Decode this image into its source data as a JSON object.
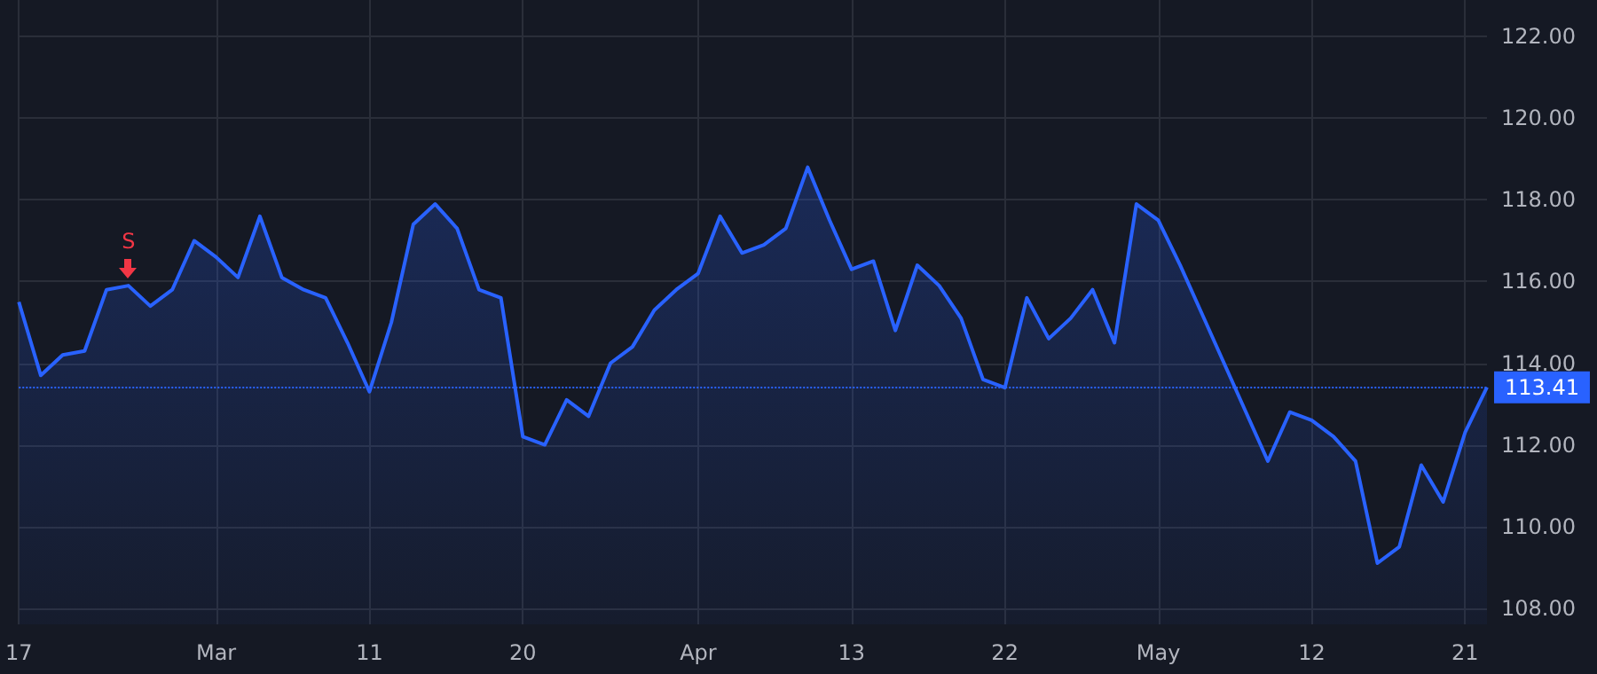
{
  "chart_data": {
    "type": "area",
    "categories": [
      "17",
      null,
      null,
      null,
      null,
      null,
      null,
      null,
      null,
      "Mar",
      null,
      null,
      null,
      null,
      null,
      null,
      "11",
      null,
      null,
      null,
      null,
      null,
      null,
      "20",
      null,
      null,
      null,
      null,
      null,
      null,
      null,
      "Apr",
      null,
      null,
      null,
      null,
      null,
      null,
      "13",
      null,
      null,
      null,
      null,
      null,
      null,
      "22",
      null,
      null,
      null,
      null,
      null,
      null,
      "May",
      null,
      null,
      null,
      null,
      null,
      null,
      "12",
      null,
      null,
      null,
      null,
      null,
      null,
      "21",
      null
    ],
    "series": [
      {
        "color": "#2962ff",
        "values": [
          115.5,
          113.7,
          114.2,
          114.3,
          115.8,
          115.9,
          115.4,
          115.8,
          117.0,
          116.6,
          116.1,
          117.6,
          116.1,
          115.8,
          115.6,
          114.5,
          113.3,
          115.0,
          117.4,
          117.9,
          117.3,
          115.8,
          115.6,
          112.2,
          112.0,
          113.1,
          112.7,
          114.0,
          114.4,
          115.3,
          115.8,
          116.2,
          117.6,
          116.7,
          116.9,
          117.3,
          118.8,
          117.5,
          116.3,
          116.5,
          114.8,
          116.4,
          115.9,
          115.1,
          113.6,
          113.4,
          115.6,
          114.6,
          115.1,
          115.8,
          114.5,
          117.9,
          117.5,
          116.4,
          115.2,
          114.0,
          112.8,
          111.6,
          112.8,
          112.6,
          112.2,
          111.6,
          109.1,
          109.5,
          111.5,
          110.6,
          112.3,
          113.41
        ]
      }
    ],
    "ylim": [
      107.6,
      122.9
    ],
    "yticks": [
      {
        "value": 108,
        "label": "108.00"
      },
      {
        "value": 110,
        "label": "110.00"
      },
      {
        "value": 112,
        "label": "112.00"
      },
      {
        "value": 114,
        "label": "114.00"
      },
      {
        "value": 116,
        "label": "116.00"
      },
      {
        "value": 118,
        "label": "118.00"
      },
      {
        "value": 120,
        "label": "120.00"
      },
      {
        "value": 122,
        "label": "122.00"
      }
    ],
    "ref_lines": [
      {
        "axis": "y",
        "value": 113.41,
        "label": "113.41",
        "color": "#2962ff",
        "line_style": "dotted"
      }
    ],
    "annotations": [
      {
        "text": "S",
        "y": 115.9
      }
    ],
    "grid": true,
    "marker": "none",
    "line_style": "solid"
  }
}
